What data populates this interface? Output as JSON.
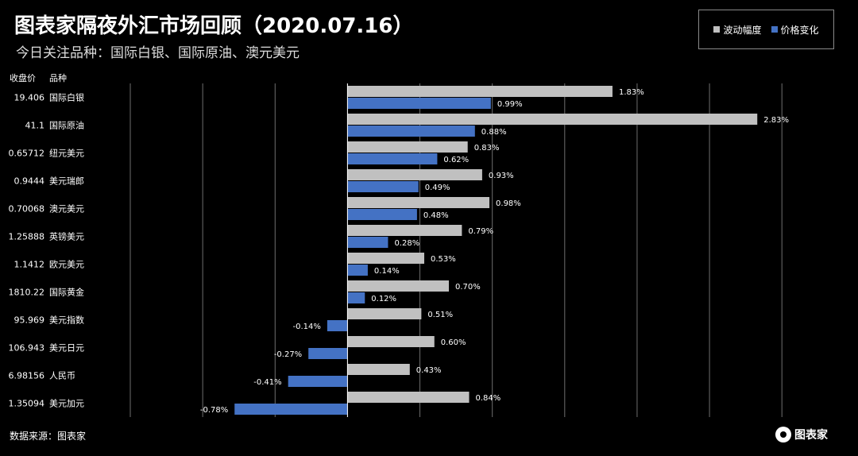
{
  "header": {
    "title": "图表家隔夜外汇市场回顾（2020.07.16）",
    "subtitle": "今日关注品种：国际白银、国际原油、澳元美元"
  },
  "columns": {
    "price": "收盘价",
    "instrument": "品种"
  },
  "legend": {
    "range_label": "波动幅度",
    "change_label": "价格变化"
  },
  "footer": {
    "source": "数据来源：图表家",
    "logo_text": "图表家"
  },
  "colors": {
    "range": "#c0c0c0",
    "change": "#4472c4",
    "grid": "#6e6e6e"
  },
  "chart_data": {
    "type": "bar",
    "orientation": "horizontal",
    "xlim": [
      -0.0195,
      0.0335
    ],
    "grid": true,
    "legend_position": "top-right",
    "categories": [
      "国际白银",
      "国际原油",
      "纽元美元",
      "美元瑞郎",
      "澳元美元",
      "英镑美元",
      "欧元美元",
      "国际黄金",
      "美元指数",
      "美元日元",
      "人民币",
      "美元加元"
    ],
    "closing_prices": [
      "19.406",
      "41.1",
      "0.65712",
      "0.9444",
      "0.70068",
      "1.25888",
      "1.1412",
      "1810.22",
      "95.969",
      "106.943",
      "6.98156",
      "1.35094"
    ],
    "series": [
      {
        "name": "波动幅度",
        "values": [
          0.0183,
          0.0283,
          0.0083,
          0.0093,
          0.0098,
          0.0079,
          0.0053,
          0.007,
          0.0051,
          0.006,
          0.0043,
          0.0084
        ],
        "labels": [
          "1.83%",
          "2.83%",
          "0.83%",
          "0.93%",
          "0.98%",
          "0.79%",
          "0.53%",
          "0.70%",
          "0.51%",
          "0.60%",
          "0.43%",
          "0.84%"
        ]
      },
      {
        "name": "价格变化",
        "values": [
          0.0099,
          0.0088,
          0.0062,
          0.0049,
          0.0048,
          0.0028,
          0.0014,
          0.0012,
          -0.0014,
          -0.0027,
          -0.0041,
          -0.0078
        ],
        "labels": [
          "0.99%",
          "0.88%",
          "0.62%",
          "0.49%",
          "0.48%",
          "0.28%",
          "0.14%",
          "0.12%",
          "-0.14%",
          "-0.27%",
          "-0.41%",
          "-0.78%"
        ]
      }
    ]
  }
}
